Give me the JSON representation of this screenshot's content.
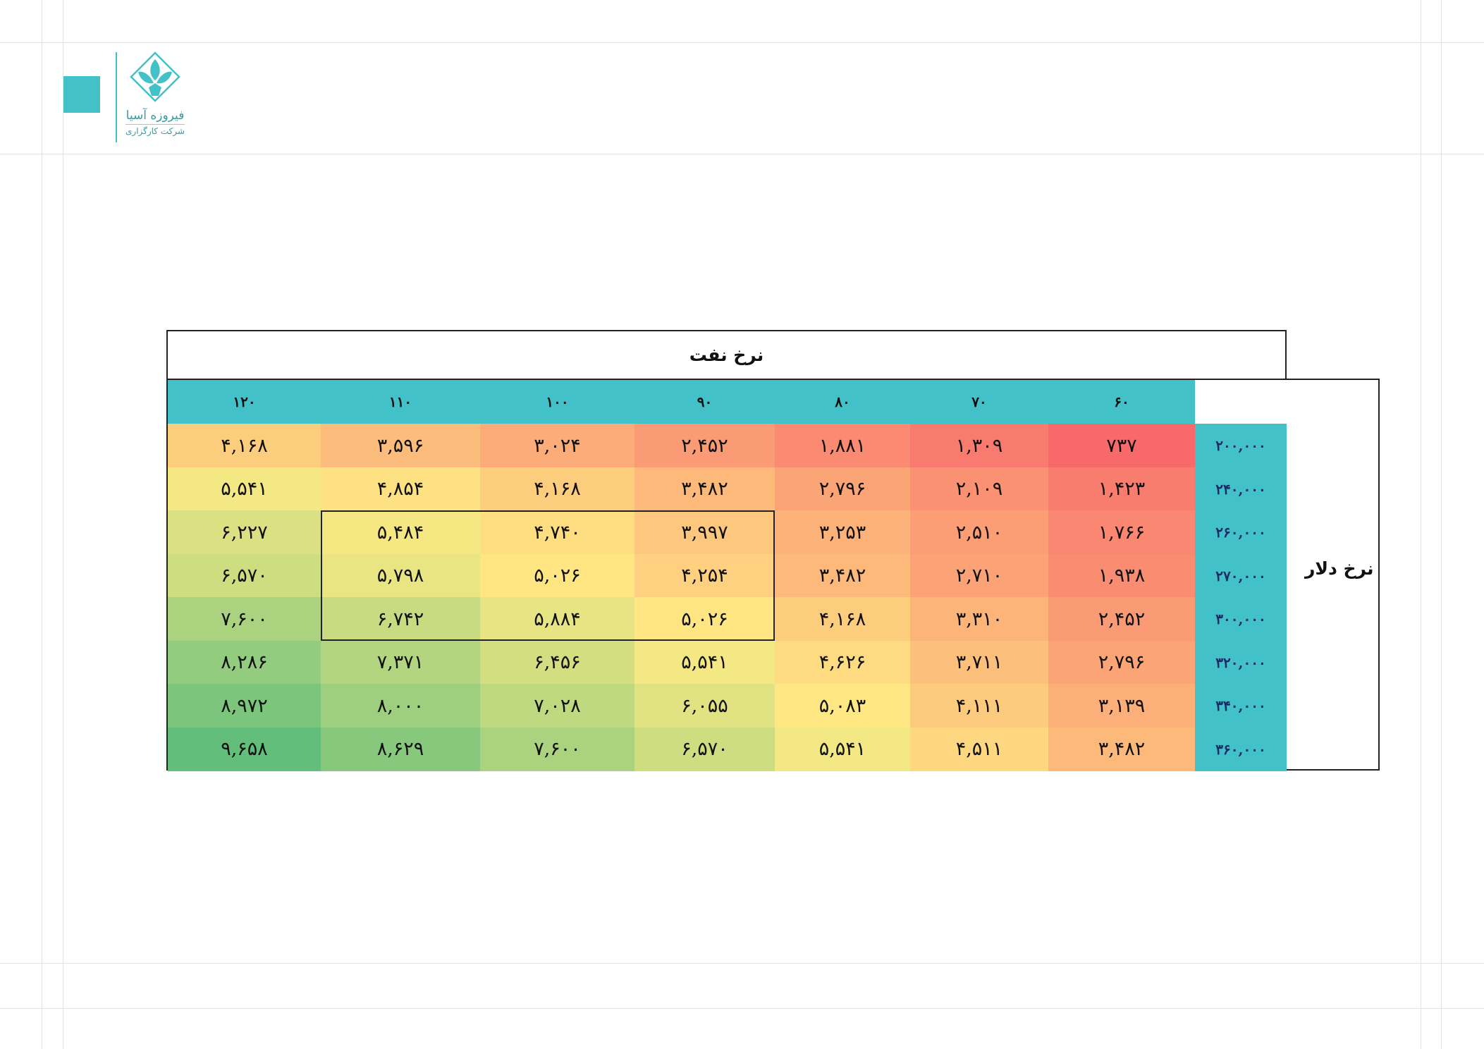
{
  "brand": {
    "name": "فیروزه آسیا",
    "subtitle": "شرکت کارگزاری",
    "accent": "#43c1c8"
  },
  "table": {
    "column_axis_title": "نرخ نفت",
    "row_axis_title": "نرخ دلار",
    "header_color": "#43c1c8",
    "highlight_block": {
      "rows": [
        "۲۶۰,۰۰۰",
        "۳۰۰,۰۰۰"
      ],
      "columns": [
        "۹۰",
        "۱۱۰"
      ]
    }
  },
  "chart_data": {
    "type": "heatmap",
    "title": "نرخ نفت",
    "xlabel": "نرخ نفت",
    "ylabel": "نرخ دلار",
    "x_labels": [
      "۱۲۰",
      "۱۱۰",
      "۱۰۰",
      "۹۰",
      "۸۰",
      "۷۰",
      "۶۰"
    ],
    "y_labels": [
      "۲۰۰,۰۰۰",
      "۲۴۰,۰۰۰",
      "۲۶۰,۰۰۰",
      "۲۷۰,۰۰۰",
      "۳۰۰,۰۰۰",
      "۳۲۰,۰۰۰",
      "۳۴۰,۰۰۰",
      "۳۶۰,۰۰۰"
    ],
    "x": [
      120,
      110,
      100,
      90,
      80,
      70,
      60
    ],
    "y": [
      200000,
      240000,
      260000,
      270000,
      300000,
      320000,
      340000,
      360000
    ],
    "cell_labels": [
      [
        "۴,۱۶۸",
        "۳,۵۹۶",
        "۳,۰۲۴",
        "۲,۴۵۲",
        "۱,۸۸۱",
        "۱,۳۰۹",
        "۷۳۷"
      ],
      [
        "۵,۵۴۱",
        "۴,۸۵۴",
        "۴,۱۶۸",
        "۳,۴۸۲",
        "۲,۷۹۶",
        "۲,۱۰۹",
        "۱,۴۲۳"
      ],
      [
        "۶,۲۲۷",
        "۵,۴۸۴",
        "۴,۷۴۰",
        "۳,۹۹۷",
        "۳,۲۵۳",
        "۲,۵۱۰",
        "۱,۷۶۶"
      ],
      [
        "۶,۵۷۰",
        "۵,۷۹۸",
        "۵,۰۲۶",
        "۴,۲۵۴",
        "۳,۴۸۲",
        "۲,۷۱۰",
        "۱,۹۳۸"
      ],
      [
        "۷,۶۰۰",
        "۶,۷۴۲",
        "۵,۸۸۴",
        "۵,۰۲۶",
        "۴,۱۶۸",
        "۳,۳۱۰",
        "۲,۴۵۲"
      ],
      [
        "۸,۲۸۶",
        "۷,۳۷۱",
        "۶,۴۵۶",
        "۵,۵۴۱",
        "۴,۶۲۶",
        "۳,۷۱۱",
        "۲,۷۹۶"
      ],
      [
        "۸,۹۷۲",
        "۸,۰۰۰",
        "۷,۰۲۸",
        "۶,۰۵۵",
        "۵,۰۸۳",
        "۴,۱۱۱",
        "۳,۱۳۹"
      ],
      [
        "۹,۶۵۸",
        "۸,۶۲۹",
        "۷,۶۰۰",
        "۶,۵۷۰",
        "۵,۵۴۱",
        "۴,۵۱۱",
        "۳,۴۸۲"
      ]
    ],
    "values": [
      [
        4168,
        3596,
        3024,
        2452,
        1881,
        1309,
        737
      ],
      [
        5541,
        4854,
        4168,
        3482,
        2796,
        2109,
        1423
      ],
      [
        6227,
        5484,
        4740,
        3997,
        3253,
        2510,
        1766
      ],
      [
        6570,
        5798,
        5026,
        4254,
        3482,
        2710,
        1938
      ],
      [
        7600,
        6742,
        5884,
        5026,
        4168,
        3310,
        2452
      ],
      [
        8286,
        7371,
        6456,
        5541,
        4626,
        3711,
        2796
      ],
      [
        8972,
        8000,
        7028,
        6055,
        5083,
        4111,
        3139
      ],
      [
        9658,
        8629,
        7600,
        6570,
        5541,
        4511,
        3482
      ]
    ],
    "colorscale": [
      "#f8696b",
      "#ffeb84",
      "#63be7b"
    ]
  }
}
